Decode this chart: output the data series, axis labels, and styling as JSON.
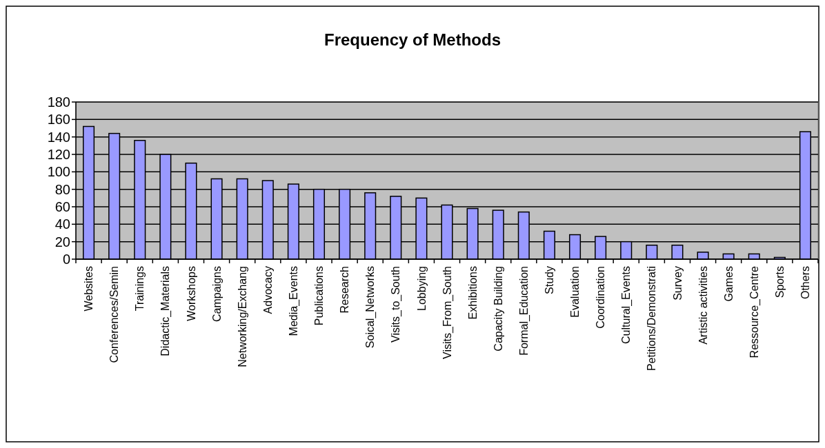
{
  "chart_data": {
    "type": "bar",
    "title": "Frequency of Methods",
    "categories": [
      "Websites",
      "Conferences/Semin",
      "Trainings",
      "Didactic_Materials",
      "Workshops",
      "Campaigns",
      "Networking/Exchang",
      "Advocacy",
      "Media_Events",
      "Publications",
      "Research",
      "Soical_Networks",
      "Visits_to_South",
      "Lobbying",
      "Visits_From_South",
      "Exhibitions",
      "Capacity Building",
      "Formal_Education",
      "Study",
      "Evaluation",
      "Coordination",
      "Cultural_Events",
      "Petitions/Demonstrati",
      "Survey",
      "Artistic activities",
      "Games",
      "Ressource_Centre",
      "Sports",
      "Others"
    ],
    "values": [
      152,
      144,
      136,
      120,
      110,
      92,
      92,
      90,
      86,
      80,
      80,
      76,
      72,
      70,
      62,
      58,
      56,
      54,
      32,
      28,
      26,
      20,
      16,
      16,
      8,
      6,
      6,
      2,
      146
    ],
    "color": "#9999ff",
    "ylim": [
      0,
      180
    ],
    "yticks": [
      0,
      20,
      40,
      60,
      80,
      100,
      120,
      140,
      160,
      180
    ],
    "grid": "y"
  }
}
